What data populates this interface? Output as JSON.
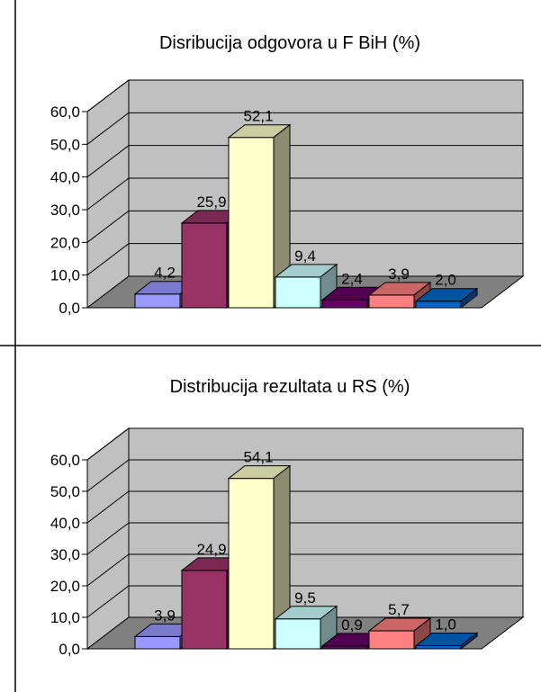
{
  "chart_data": [
    {
      "type": "bar",
      "title": "Disribucija odgovora u F BiH (%)",
      "categories": [
        "",
        "",
        "",
        "",
        "",
        "",
        ""
      ],
      "values": [
        4.2,
        25.9,
        52.1,
        9.4,
        2.4,
        3.9,
        2.0
      ],
      "data_labels": [
        "4,2",
        "25,9",
        "52,1",
        "9,4",
        "2,4",
        "3,9",
        "2,0"
      ],
      "bar_colors": [
        "#9999FF",
        "#993366",
        "#FFFFCC",
        "#CCFFFF",
        "#660066",
        "#FF8080",
        "#0066CC"
      ],
      "ylim": [
        0,
        60
      ],
      "yticks": [
        "0,0",
        "10,0",
        "20,0",
        "30,0",
        "40,0",
        "50,0",
        "60,0"
      ],
      "grid": true,
      "legend": "none",
      "style": "3d"
    },
    {
      "type": "bar",
      "title": "Distribucija rezultata u RS (%)",
      "categories": [
        "",
        "",
        "",
        "",
        "",
        "",
        ""
      ],
      "values": [
        3.9,
        24.9,
        54.1,
        9.5,
        0.9,
        5.7,
        1.0
      ],
      "data_labels": [
        "3,9",
        "24,9",
        "54,1",
        "9,5",
        "0,9",
        "5,7",
        "1,0"
      ],
      "bar_colors": [
        "#9999FF",
        "#993366",
        "#FFFFCC",
        "#CCFFFF",
        "#660066",
        "#FF8080",
        "#0066CC"
      ],
      "ylim": [
        0,
        60
      ],
      "yticks": [
        "0,0",
        "10,0",
        "20,0",
        "30,0",
        "40,0",
        "50,0",
        "60,0"
      ],
      "grid": true,
      "legend": "none",
      "style": "3d"
    }
  ],
  "colors": {
    "wall": "#C0C0C0",
    "floor": "#808080",
    "grid": "#000000",
    "frame": "#000000"
  }
}
